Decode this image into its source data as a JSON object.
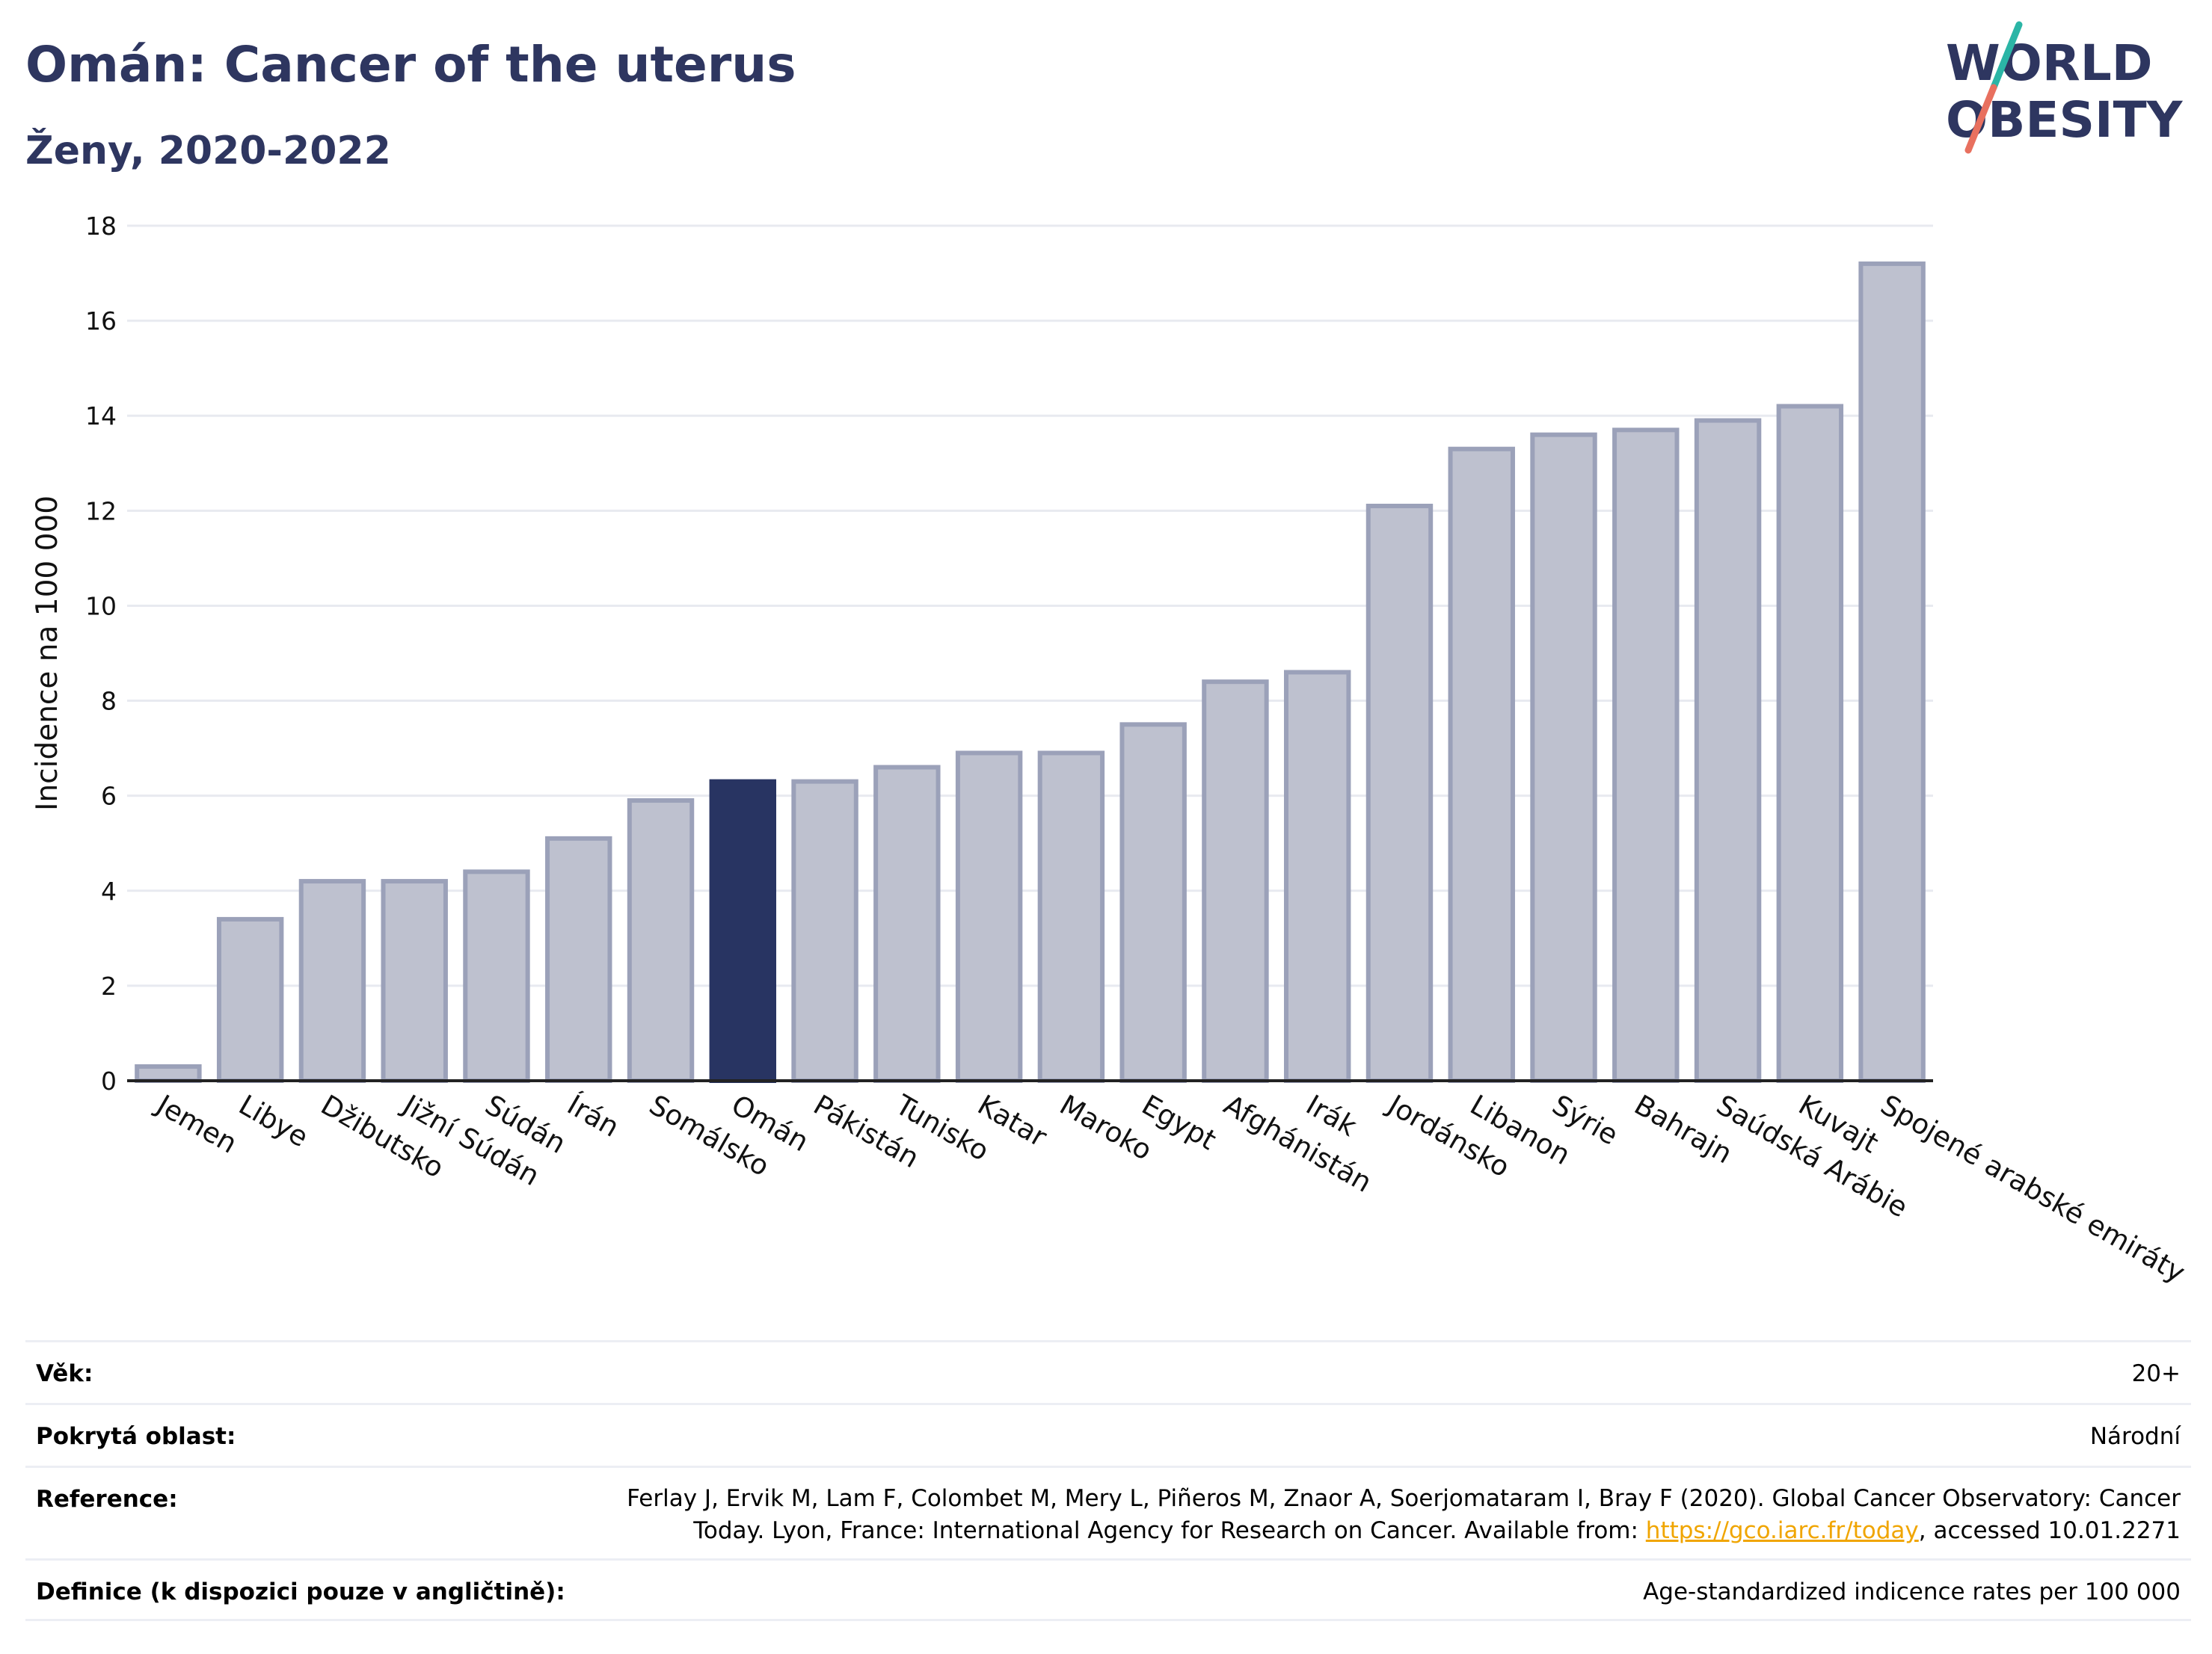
{
  "header": {
    "title": "Omán: Cancer of the uterus",
    "subtitle": "Ženy, 2020-2022"
  },
  "logo": {
    "line1": "WORLD",
    "line2": "OBESITY",
    "accent_colors": [
      "#2bb5a6",
      "#e8705f"
    ],
    "text_color": "#2e3660"
  },
  "chart_data": {
    "type": "bar",
    "categories": [
      "Jemen",
      "Libye",
      "Džibutsko",
      "Jižní Súdán",
      "Súdán",
      "Írán",
      "Somálsko",
      "Omán",
      "Pákistán",
      "Tunisko",
      "Katar",
      "Maroko",
      "Egypt",
      "Afghánistán",
      "Irák",
      "Jordánsko",
      "Libanon",
      "Sýrie",
      "Bahrajn",
      "Saúdská Arábie",
      "Kuvajt",
      "Spojené arabské emiráty"
    ],
    "values": [
      0.3,
      3.4,
      4.2,
      4.2,
      4.4,
      5.1,
      5.9,
      6.3,
      6.3,
      6.6,
      6.9,
      6.9,
      7.5,
      8.4,
      8.6,
      12.1,
      13.3,
      13.6,
      13.7,
      13.9,
      14.2,
      17.2
    ],
    "highlight": "Omán",
    "ylabel": "Incidence na 100 000",
    "xlabel": "",
    "ylim": [
      0,
      18
    ],
    "yticks": [
      0,
      2,
      4,
      6,
      8,
      10,
      12,
      14,
      16,
      18
    ],
    "grid": true,
    "colors": {
      "bar": "#bec1cf",
      "bar_edge": "#9ba1b9",
      "highlight": "#283462",
      "grid": "#e8eaf0",
      "axis": "#222222"
    }
  },
  "meta": {
    "age_label": "Věk:",
    "age_value": "20+",
    "coverage_label": "Pokrytá oblast:",
    "coverage_value": "Národní",
    "reference_label": "Reference:",
    "reference_text_1": "Ferlay J, Ervik M, Lam F, Colombet M, Mery L, Piñeros M, Znaor A, Soerjomataram I, Bray F (2020). Global Cancer Observatory: Cancer Today. Lyon, France: International Agency for Research on Cancer. Available from: ",
    "reference_link": "https://gco.iarc.fr/today",
    "reference_text_2": ", accessed 10.01.2271",
    "definition_label": "Definice (k dispozici pouze v angličtině):",
    "definition_value": "Age-standardized indicence rates per 100 000"
  }
}
